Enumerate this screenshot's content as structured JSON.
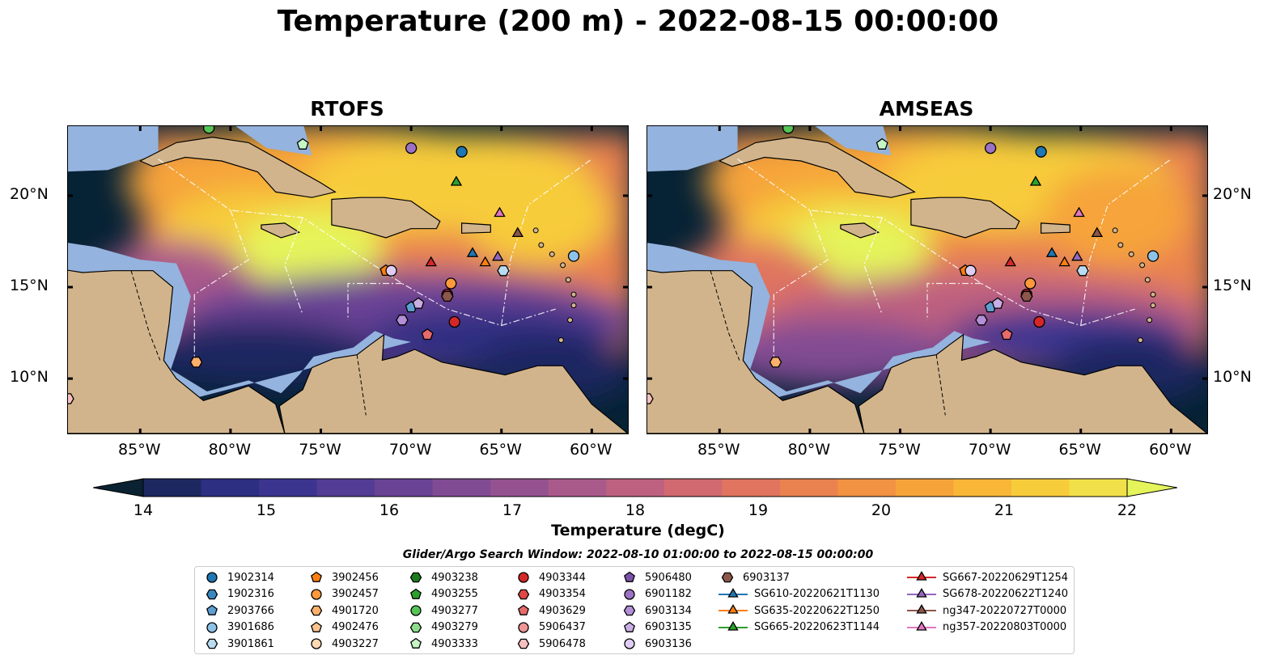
{
  "title": "Temperature (200 m) - 2022-08-15 00:00:00",
  "panels": [
    {
      "title": "RTOFS"
    },
    {
      "title": "AMSEAS"
    }
  ],
  "lon_ticks": [
    "85°W",
    "80°W",
    "75°W",
    "70°W",
    "65°W",
    "60°W"
  ],
  "lat_ticks": [
    "20°N",
    "15°N",
    "10°N"
  ],
  "colorbar": {
    "title": "Temperature (degC)",
    "ticks": [
      "14",
      "15",
      "16",
      "17",
      "18",
      "19",
      "20",
      "21",
      "22"
    ],
    "colors": [
      "#0a2232",
      "#1e2860",
      "#2d2f82",
      "#3b3590",
      "#533c93",
      "#6a4395",
      "#814b93",
      "#955290",
      "#aa5a8a",
      "#be6180",
      "#d16a70",
      "#e0745e",
      "#ea8250",
      "#f29243",
      "#f6a43a",
      "#f8b737",
      "#f7cc3b",
      "#f2e04a",
      "#e5f45a"
    ]
  },
  "legend": {
    "window": "Glider/Argo Search Window: 2022-08-10 01:00:00 to 2022-08-15 00:00:00",
    "columns": [
      [
        {
          "label": "1902314",
          "marker": "circle",
          "color": "#1f77b4"
        },
        {
          "label": "1902316",
          "marker": "hexagon",
          "color": "#3a87c0"
        },
        {
          "label": "2903766",
          "marker": "pentagon",
          "color": "#5d9fd3"
        },
        {
          "label": "3901686",
          "marker": "circle",
          "color": "#8ec3e8"
        },
        {
          "label": "3901861",
          "marker": "hexagon",
          "color": "#b9dcf2"
        }
      ],
      [
        {
          "label": "3902456",
          "marker": "pentagon",
          "color": "#ff7f0e"
        },
        {
          "label": "3902457",
          "marker": "circle",
          "color": "#ff9a3c"
        },
        {
          "label": "4901720",
          "marker": "hexagon",
          "color": "#ffb06a"
        },
        {
          "label": "4902476",
          "marker": "pentagon",
          "color": "#ffc38f"
        },
        {
          "label": "4903227",
          "marker": "circle",
          "color": "#ffd9b3"
        }
      ],
      [
        {
          "label": "4903238",
          "marker": "hexagon",
          "color": "#1e7a1e"
        },
        {
          "label": "4903255",
          "marker": "pentagon",
          "color": "#2ca02c"
        },
        {
          "label": "4903277",
          "marker": "circle",
          "color": "#55c455"
        },
        {
          "label": "4903279",
          "marker": "hexagon",
          "color": "#8bdc8b"
        },
        {
          "label": "4903333",
          "marker": "pentagon",
          "color": "#c6f5c6"
        }
      ],
      [
        {
          "label": "4903344",
          "marker": "circle",
          "color": "#d62728"
        },
        {
          "label": "4903354",
          "marker": "hexagon",
          "color": "#e04848"
        },
        {
          "label": "4903629",
          "marker": "pentagon",
          "color": "#e86b6b"
        },
        {
          "label": "5906437",
          "marker": "circle",
          "color": "#f09595"
        },
        {
          "label": "5906478",
          "marker": "hexagon",
          "color": "#f8c0c0"
        }
      ],
      [
        {
          "label": "5906480",
          "marker": "pentagon",
          "color": "#7b52ab"
        },
        {
          "label": "6901182",
          "marker": "circle",
          "color": "#9b72c4"
        },
        {
          "label": "6903134",
          "marker": "hexagon",
          "color": "#b28fd6"
        },
        {
          "label": "6903135",
          "marker": "pentagon",
          "color": "#c9aee6"
        },
        {
          "label": "6903136",
          "marker": "circle",
          "color": "#e0cdf4"
        }
      ],
      [
        {
          "label": "6903137",
          "marker": "hexagon",
          "color": "#8c564b"
        },
        {
          "label": "SG610-20220621T1130",
          "marker": "triangle",
          "color": "#1f77b4"
        },
        {
          "label": "SG635-20220622T1250",
          "marker": "triangle",
          "color": "#ff7f0e"
        },
        {
          "label": "SG665-20220623T1144",
          "marker": "triangle",
          "color": "#2ca02c"
        }
      ],
      [
        {
          "label": "SG667-20220629T1254",
          "marker": "triangle",
          "color": "#d62728"
        },
        {
          "label": "SG678-20220622T1240",
          "marker": "triangle",
          "color": "#9467bd"
        },
        {
          "label": "ng347-20220727T0000",
          "marker": "triangle",
          "color": "#8c564b"
        },
        {
          "label": "ng357-20220803T0000",
          "marker": "triangle",
          "color": "#e377c2"
        }
      ]
    ]
  },
  "map_colors": {
    "land": "#d2b48c",
    "shelf": "#94b3de",
    "deep": "#062235"
  }
}
